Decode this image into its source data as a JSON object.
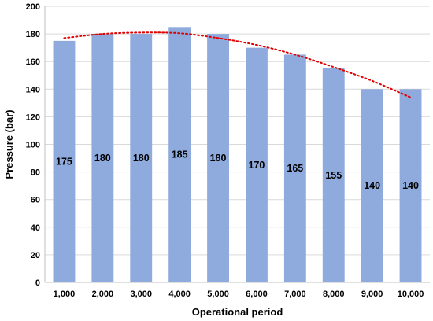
{
  "chart_data": {
    "type": "bar",
    "categories": [
      "1,000",
      "2,000",
      "3,000",
      "4,000",
      "5,000",
      "6,000",
      "7,000",
      "8,000",
      "9,000",
      "10,000"
    ],
    "values": [
      175,
      180,
      180,
      185,
      180,
      170,
      165,
      155,
      140,
      140
    ],
    "data_labels": [
      "175",
      "180",
      "180",
      "185",
      "180",
      "170",
      "165",
      "155",
      "140",
      "140"
    ],
    "xlabel": "Operational period",
    "ylabel": "Pressure (bar)",
    "ylim": [
      0,
      200
    ],
    "yticks": [
      0,
      20,
      40,
      60,
      80,
      100,
      120,
      140,
      160,
      180,
      200
    ],
    "grid": true,
    "bar_color": "#8FAADC",
    "trendline": {
      "type": "polynomial",
      "style": "dotted",
      "color": "#E00000",
      "points": [
        {
          "x": "1,000",
          "y": 177
        },
        {
          "x": "2,000",
          "y": 180
        },
        {
          "x": "3,000",
          "y": 181
        },
        {
          "x": "4,000",
          "y": 180.5
        },
        {
          "x": "5,000",
          "y": 177
        },
        {
          "x": "6,000",
          "y": 172
        },
        {
          "x": "7,000",
          "y": 165
        },
        {
          "x": "8,000",
          "y": 156
        },
        {
          "x": "9,000",
          "y": 146
        },
        {
          "x": "10,000",
          "y": 134
        }
      ]
    }
  }
}
